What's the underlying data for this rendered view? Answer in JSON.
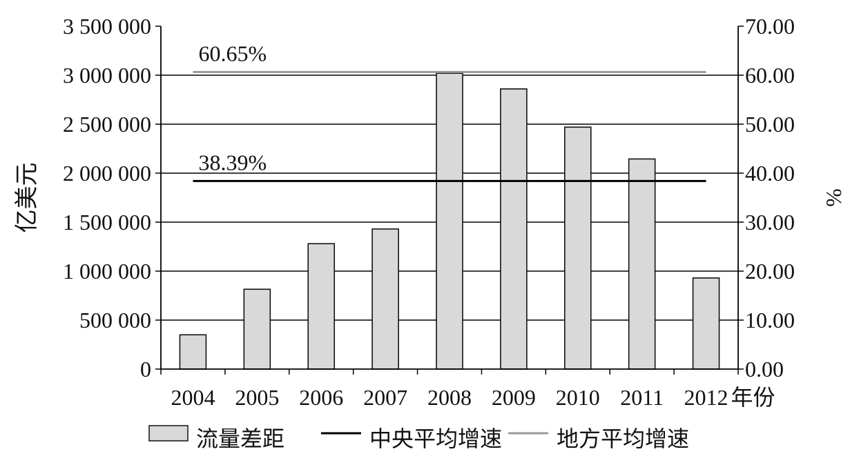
{
  "chart_data": {
    "type": "bar",
    "categories": [
      "2004",
      "2005",
      "2006",
      "2007",
      "2008",
      "2009",
      "2010",
      "2011",
      "2012"
    ],
    "x_unit_label": "年份",
    "series": [
      {
        "name": "流量差距",
        "type": "bar",
        "axis": "left",
        "values": [
          350000,
          815000,
          1280000,
          1430000,
          3020000,
          2860000,
          2470000,
          2145000,
          930000
        ],
        "color": "#d9d9d9",
        "stroke": "#111111"
      },
      {
        "name": "中央平均增速",
        "type": "hline",
        "axis": "right",
        "value": 38.39,
        "label": "38.39%",
        "color": "#000000"
      },
      {
        "name": "地方平均增速",
        "type": "hline",
        "axis": "right",
        "value": 60.65,
        "label": "60.65%",
        "color": "#999999"
      }
    ],
    "left_axis": {
      "label": "亿美元",
      "ylim": [
        0,
        3500000
      ],
      "ticks": [
        0,
        500000,
        1000000,
        1500000,
        2000000,
        2500000,
        3000000,
        3500000
      ],
      "tick_labels": [
        "0",
        "500 000",
        "1 000 000",
        "1 500 000",
        "2 000 000",
        "2 500 000",
        "3 000 000",
        "3 500 000"
      ]
    },
    "right_axis": {
      "label": "%",
      "ylim": [
        0,
        70
      ],
      "ticks": [
        0,
        10,
        20,
        30,
        40,
        50,
        60,
        70
      ],
      "tick_labels": [
        "0.00",
        "10.00",
        "20.00",
        "30.00",
        "40.00",
        "50.00",
        "60.00",
        "70.00"
      ]
    },
    "grid": true,
    "legend": {
      "placement": "bottom",
      "items": [
        {
          "label": "流量差距",
          "kind": "box"
        },
        {
          "label": "中央平均增速",
          "kind": "line"
        },
        {
          "label": "地方平均增速",
          "kind": "line"
        }
      ]
    }
  }
}
